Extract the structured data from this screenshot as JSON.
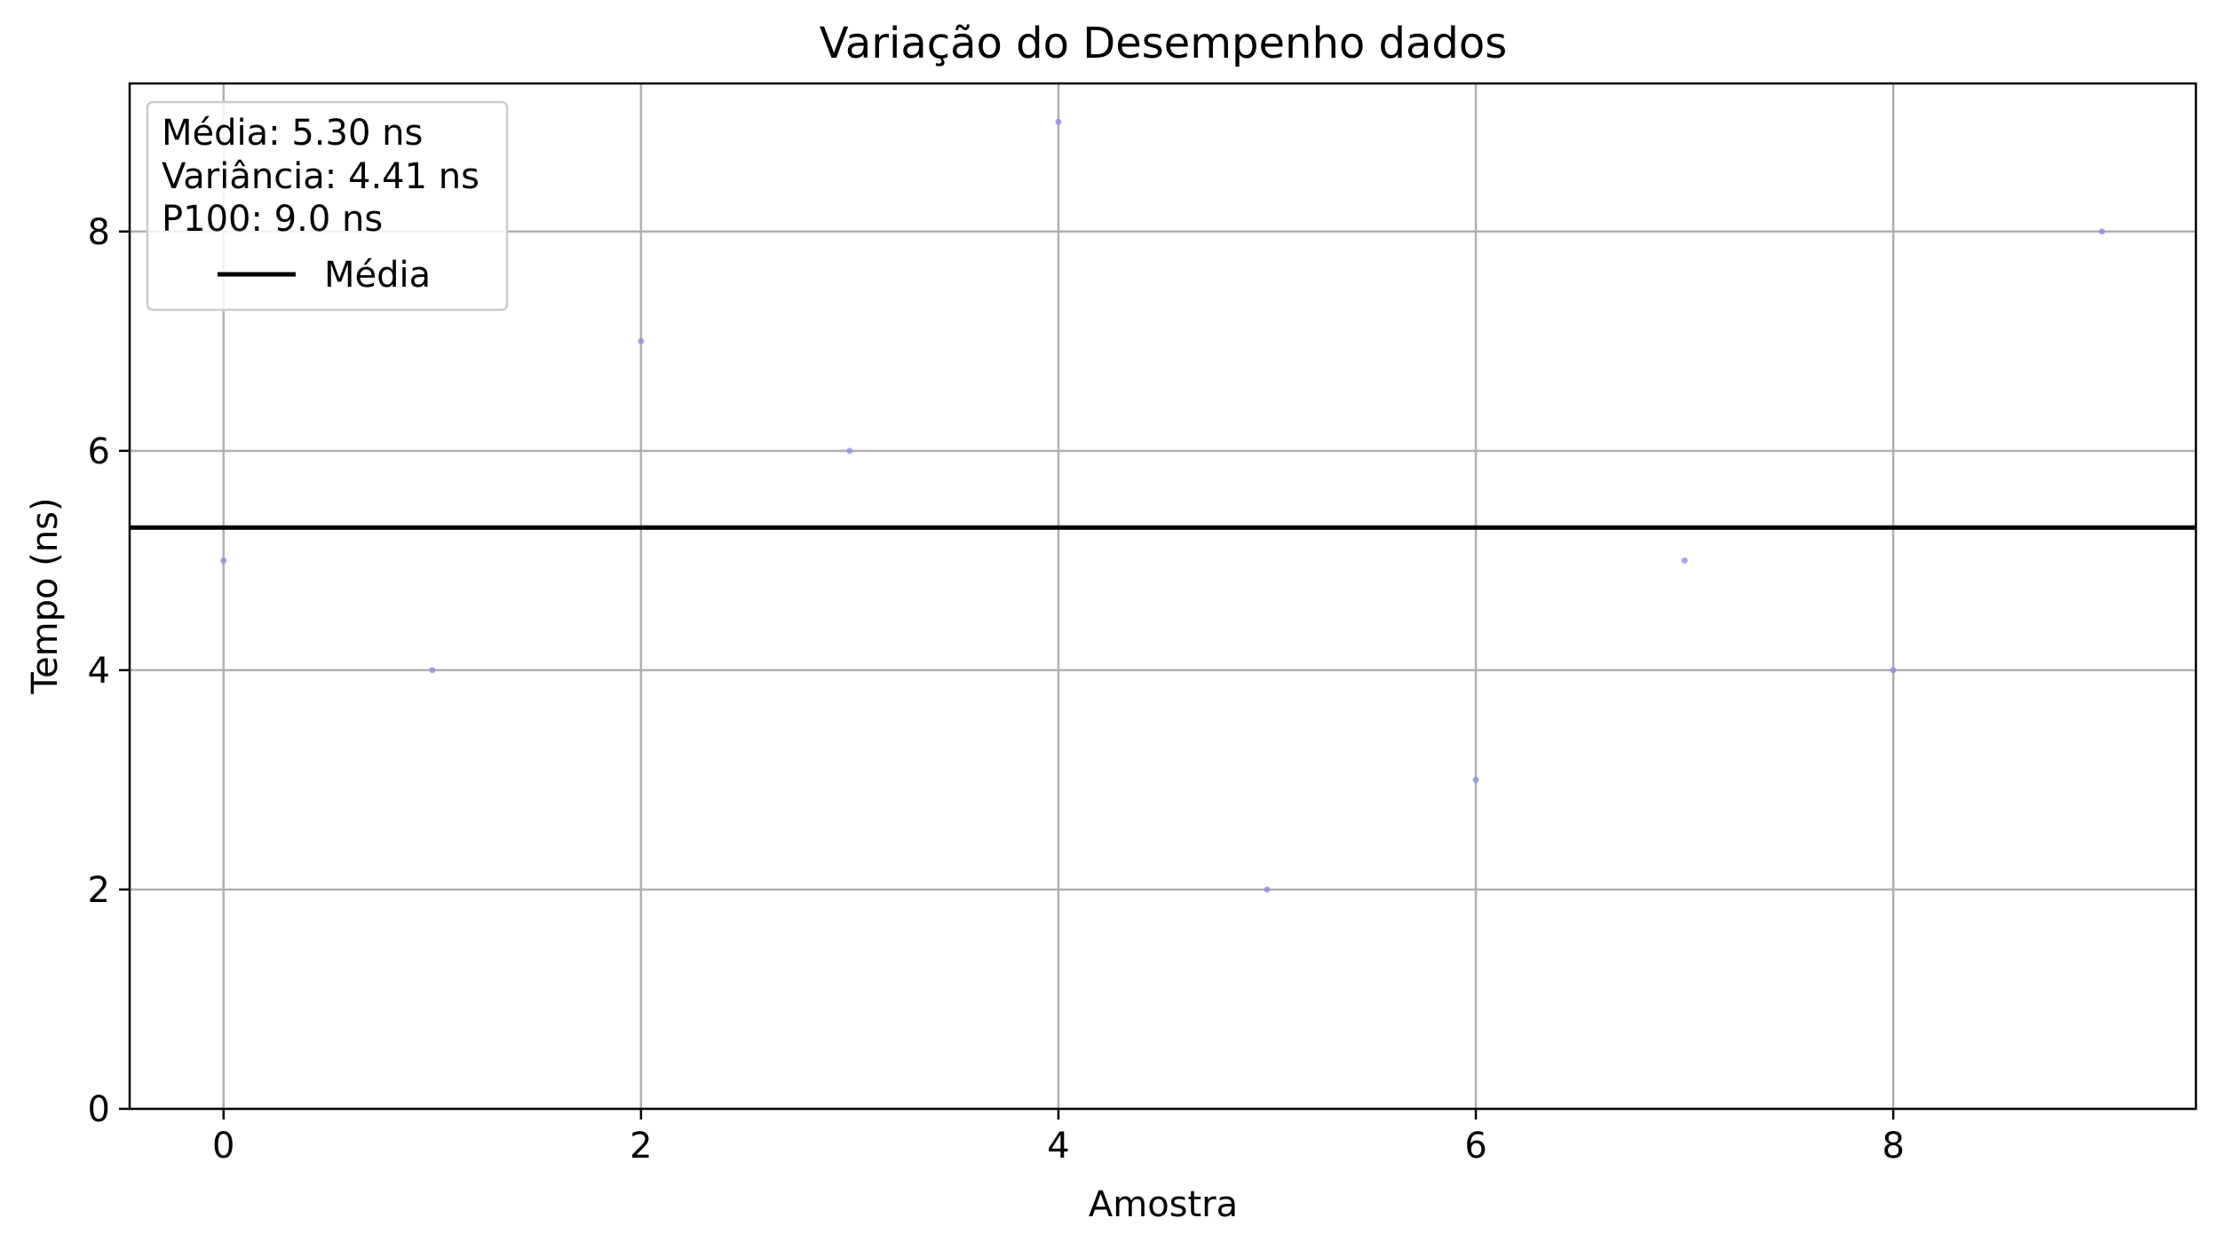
{
  "chart_data": {
    "type": "scatter",
    "title": "Variação do Desempenho dados",
    "xlabel": "Amostra",
    "ylabel": "Tempo (ns)",
    "x": [
      0,
      1,
      2,
      3,
      4,
      5,
      6,
      7,
      8,
      9
    ],
    "series": [
      {
        "values": [
          5,
          4,
          7,
          6,
          9,
          2,
          3,
          5,
          4,
          8
        ]
      }
    ],
    "mean_line": {
      "name": "Média",
      "value": 5.3
    },
    "stats_text": [
      "Média: 5.30 ns",
      "Variância: 4.41 ns",
      "P100: 9.0 ns"
    ],
    "xlim": [
      -0.45,
      9.45
    ],
    "ylim": [
      0,
      9.35
    ],
    "xticks": [
      0,
      2,
      4,
      6,
      8
    ],
    "yticks": [
      0,
      2,
      4,
      6,
      8
    ],
    "xtick_labels": [
      "0",
      "2",
      "4",
      "6",
      "8"
    ],
    "ytick_labels": [
      "0",
      "2",
      "4",
      "6",
      "8"
    ],
    "grid": true,
    "legend_position": "top-left",
    "colors": {
      "points": "#8a8ae6",
      "mean_line": "#000000",
      "grid": "#b0b0b0"
    }
  }
}
